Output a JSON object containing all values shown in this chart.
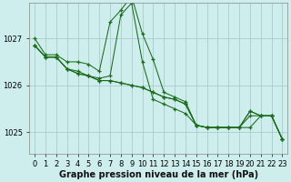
{
  "background_color": "#ceeeed",
  "grid_color": "#aacccc",
  "line_color": "#1a6b1a",
  "marker_color": "#1a6b1a",
  "yticks": [
    1025,
    1026,
    1027
  ],
  "ylim": [
    1024.55,
    1027.75
  ],
  "xlim": [
    -0.5,
    23.5
  ],
  "xticks": [
    0,
    1,
    2,
    3,
    4,
    5,
    6,
    7,
    8,
    9,
    10,
    11,
    12,
    13,
    14,
    15,
    16,
    17,
    18,
    19,
    20,
    21,
    22,
    23
  ],
  "series": [
    [
      1027.0,
      1026.65,
      1026.65,
      1026.5,
      1026.5,
      1026.45,
      1026.3,
      1027.35,
      1027.6,
      1027.9,
      1027.1,
      1026.55,
      1025.85,
      1025.75,
      1025.65,
      1025.15,
      1025.1,
      1025.1,
      1025.1,
      1025.1,
      1025.45,
      1025.35,
      1025.35,
      1024.85
    ],
    [
      1026.85,
      1026.6,
      1026.6,
      1026.35,
      1026.3,
      1026.2,
      1026.15,
      1026.2,
      1027.5,
      1027.75,
      1026.5,
      1025.7,
      1025.6,
      1025.5,
      1025.4,
      1025.15,
      1025.1,
      1025.1,
      1025.1,
      1025.1,
      1025.45,
      1025.35,
      1025.35,
      1024.85
    ],
    [
      1026.85,
      1026.6,
      1026.6,
      1026.35,
      1026.25,
      1026.2,
      1026.1,
      1026.1,
      1026.05,
      1026.0,
      1025.95,
      1025.85,
      1025.75,
      1025.7,
      1025.6,
      1025.15,
      1025.1,
      1025.1,
      1025.1,
      1025.1,
      1025.35,
      1025.35,
      1025.35,
      1024.85
    ],
    [
      1026.85,
      1026.6,
      1026.6,
      1026.35,
      1026.25,
      1026.2,
      1026.1,
      1026.1,
      1026.05,
      1026.0,
      1025.95,
      1025.85,
      1025.75,
      1025.7,
      1025.6,
      1025.15,
      1025.1,
      1025.1,
      1025.1,
      1025.1,
      1025.1,
      1025.35,
      1025.35,
      1024.85
    ]
  ],
  "xlabel": "Graphe pression niveau de la mer (hPa)",
  "axis_fontsize": 7,
  "tick_fontsize": 6
}
